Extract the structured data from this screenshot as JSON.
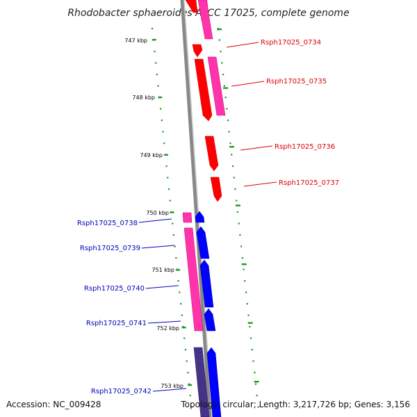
{
  "title": "Rhodobacter sphaeroides ATCC 17025, complete genome",
  "footer": {
    "accession": "Accession: NC_009428",
    "summary": "Topology: circular; Length: 3,217,726 bp; Genes: 3,156"
  },
  "colors": {
    "forward_strand": "#ff0000",
    "reverse_strand": "#0000ff",
    "cds_pink": "#ff33aa",
    "cds_purple": "#443388",
    "tick": "#229922",
    "backbone": "#888888",
    "label_forward": "#dd0000",
    "label_reverse": "#0000bb"
  },
  "scale": {
    "ticks": [
      "747 kbp",
      "748 kbp",
      "749 kbp",
      "750 kbp",
      "751 kbp",
      "752 kbp",
      "753 kbp"
    ]
  },
  "genes": [
    {
      "id": "Rsph17025_0734",
      "strand": "forward",
      "track": "right"
    },
    {
      "id": "Rsph17025_0735",
      "strand": "forward",
      "track": "right"
    },
    {
      "id": "Rsph17025_0736",
      "strand": "forward",
      "track": "right"
    },
    {
      "id": "Rsph17025_0737",
      "strand": "forward",
      "track": "right"
    },
    {
      "id": "Rsph17025_0738",
      "strand": "reverse",
      "track": "left"
    },
    {
      "id": "Rsph17025_0739",
      "strand": "reverse",
      "track": "left"
    },
    {
      "id": "Rsph17025_0740",
      "strand": "reverse",
      "track": "left"
    },
    {
      "id": "Rsph17025_0741",
      "strand": "reverse",
      "track": "left"
    },
    {
      "id": "Rsph17025_0742",
      "strand": "reverse",
      "track": "left"
    }
  ]
}
